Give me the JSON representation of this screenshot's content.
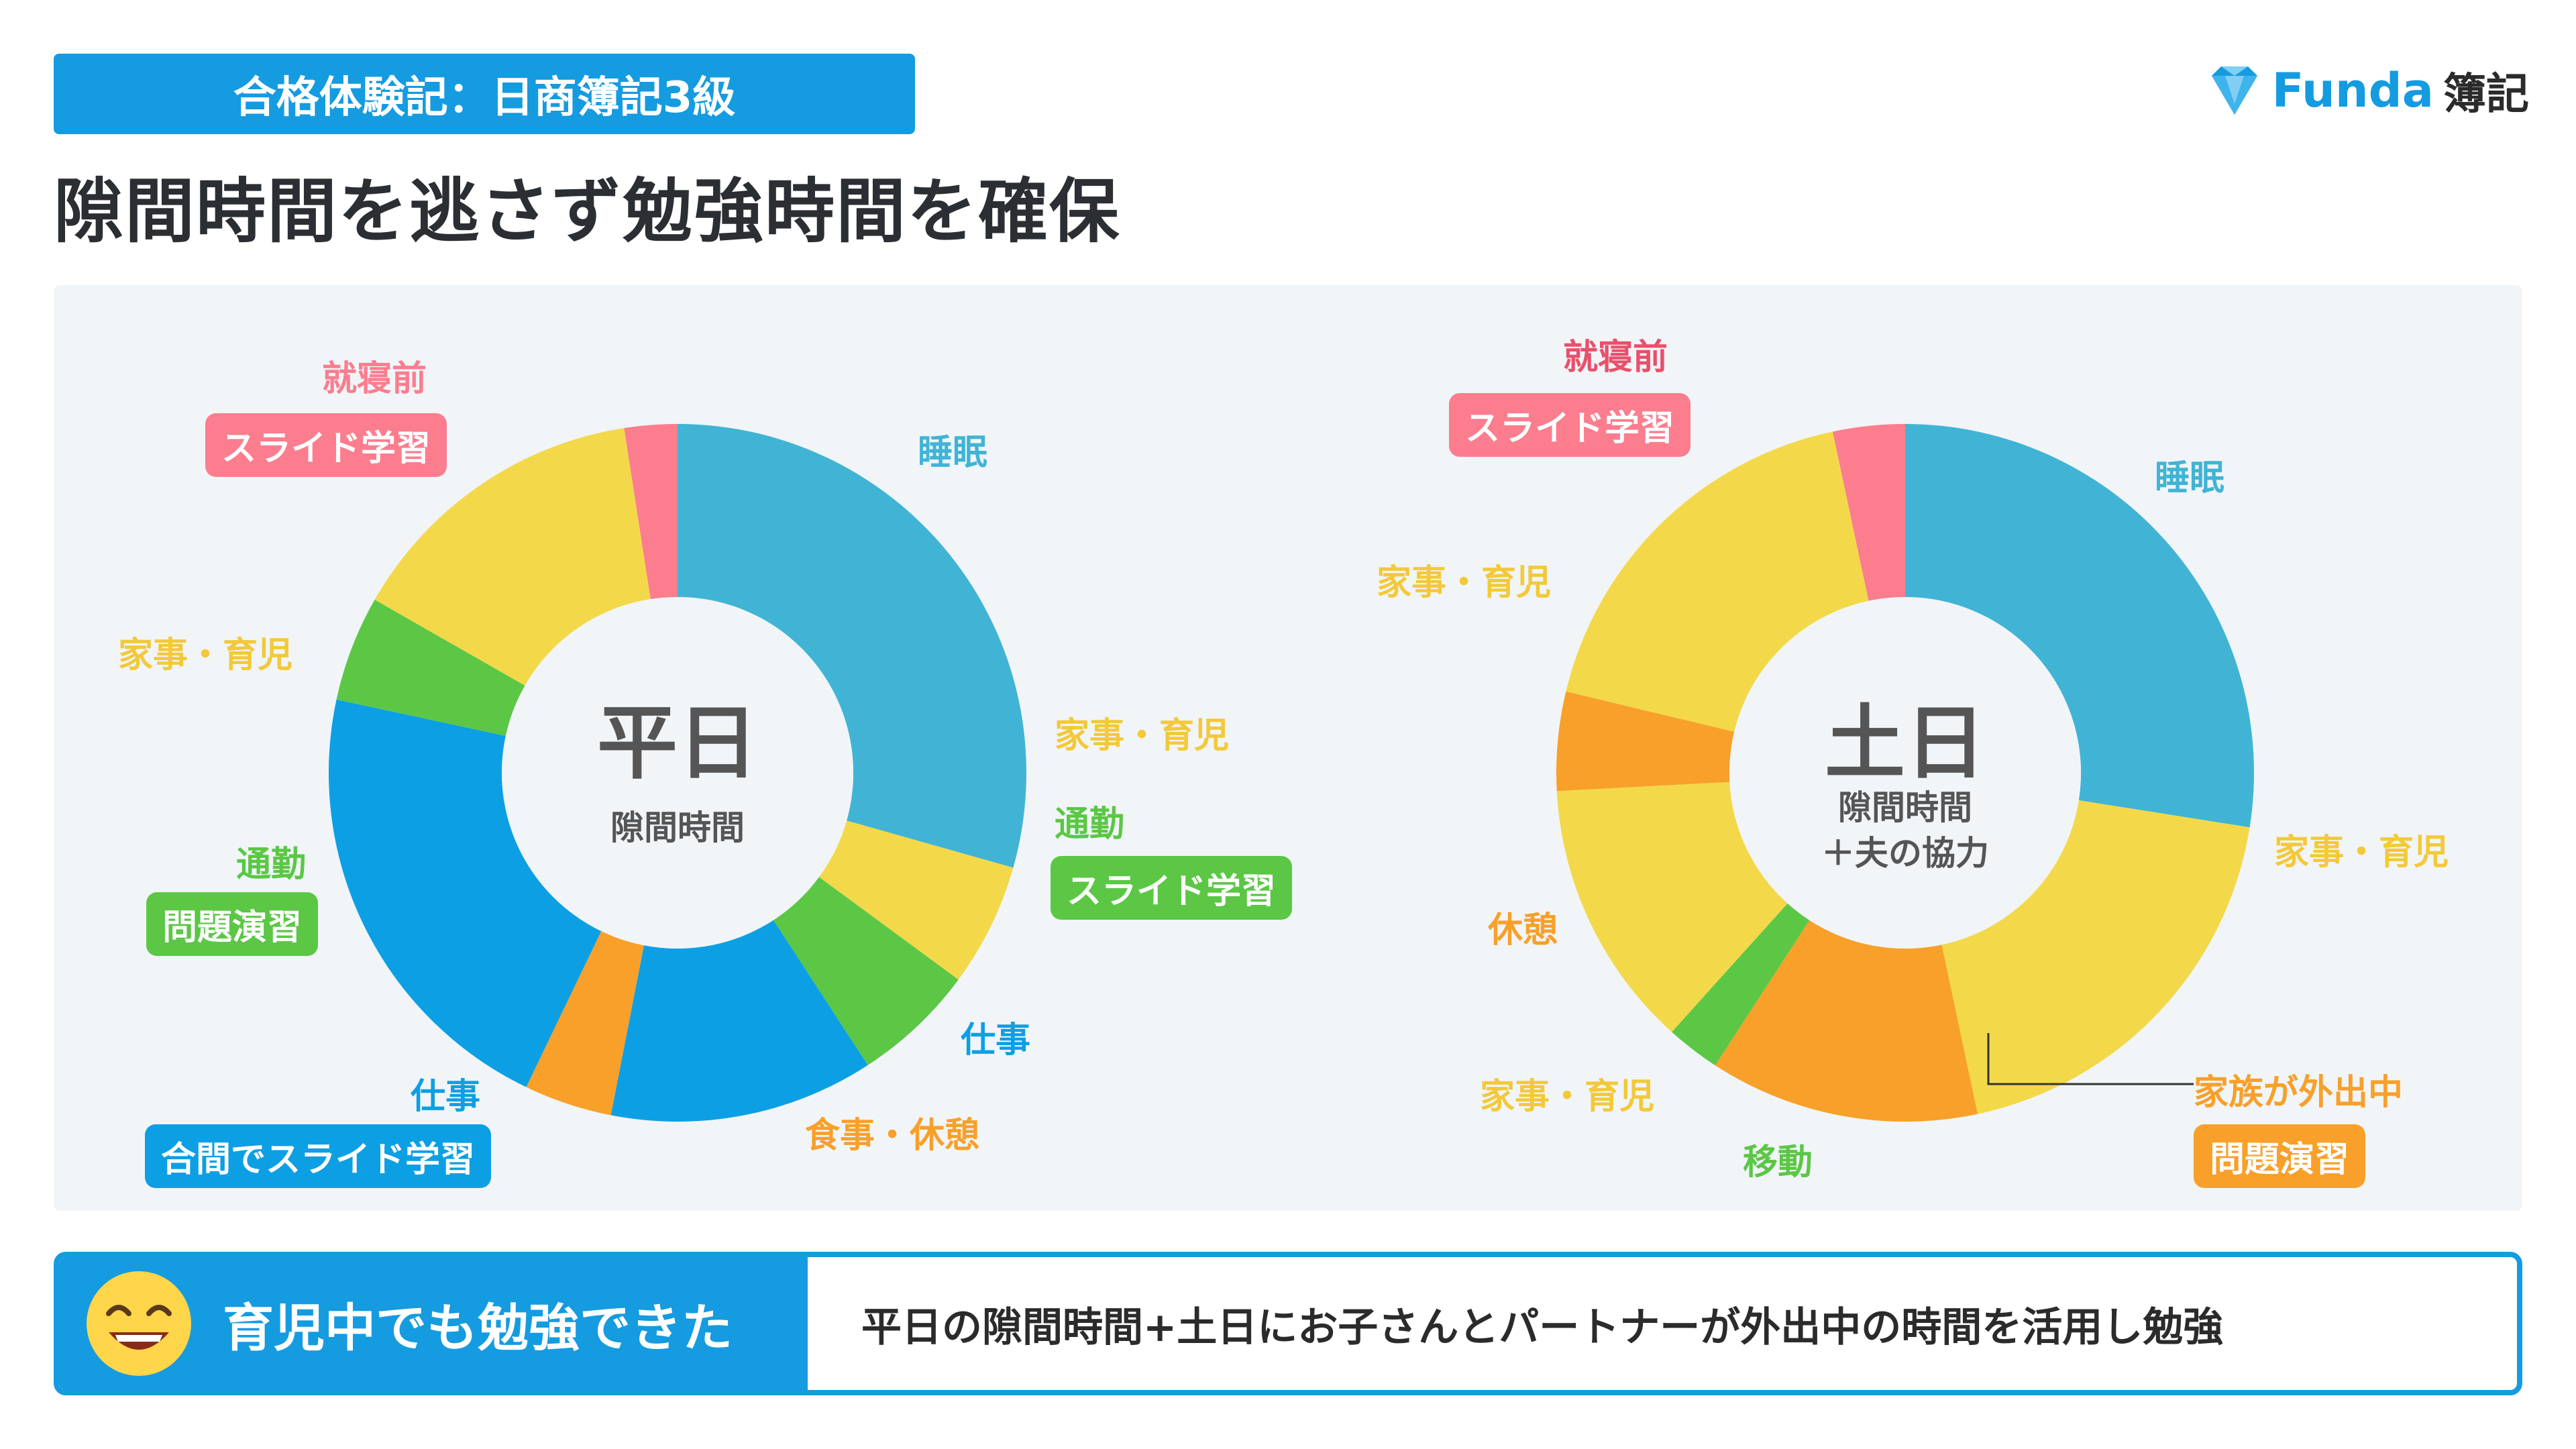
{
  "header": {
    "badge": "合格体験記：日商簿記3級",
    "title": "隙間時間を逃さず勉強時間を確保",
    "logo_word": "Funda",
    "logo_sub": "簿記"
  },
  "colors": {
    "brand": "#159be0",
    "sleep": "#41b4d5",
    "chores": "#f3d94a",
    "commute": "#5bc745",
    "work": "#0d9fe4",
    "meal": "#f8a02a",
    "bedtime": "#fb7d8e"
  },
  "chart_data": [
    {
      "type": "pie",
      "center_title": "平日",
      "center_subtitle": "隙間時間",
      "labels": [
        "睡眠",
        "家事・育児",
        "通勤",
        "仕事",
        "食事・休憩",
        "仕事",
        "通勤",
        "家事・育児",
        "就寝前"
      ],
      "values": [
        7.2,
        1.4,
        1.4,
        3.0,
        1.0,
        5.2,
        1.2,
        3.5,
        0.6
      ],
      "colors": [
        "#41b4d5",
        "#f3d94a",
        "#5bc745",
        "#0d9fe4",
        "#f8a02a",
        "#0d9fe4",
        "#5bc745",
        "#f3d94a",
        "#fb7d8e"
      ],
      "study_tags": [
        {
          "label": "就寝前",
          "study": "スライド学習"
        },
        {
          "label": "通勤",
          "study": "スライド学習"
        },
        {
          "label": "通勤",
          "study": "問題演習"
        },
        {
          "label": "仕事",
          "study": "合間でスライド学習"
        }
      ]
    },
    {
      "type": "pie",
      "center_title": "土日",
      "center_subtitle": "隙間時間\n＋夫の協力",
      "labels": [
        "睡眠",
        "家事・育児",
        "家族が外出中",
        "移動",
        "家事・育児",
        "休憩",
        "家事・育児",
        "就寝前"
      ],
      "values": [
        6.6,
        4.6,
        3.0,
        0.6,
        3.0,
        1.1,
        4.3,
        0.8
      ],
      "colors": [
        "#41b4d5",
        "#f3d94a",
        "#f8a02a",
        "#5bc745",
        "#f3d94a",
        "#f8a02a",
        "#f3d94a",
        "#fb7d8e"
      ],
      "study_tags": [
        {
          "label": "就寝前",
          "study": "スライド学習"
        },
        {
          "label": "家族が外出中",
          "study": "問題演習"
        }
      ]
    }
  ],
  "labels": {
    "weekday": {
      "bedtime": "就寝前",
      "bedtime_study": "スライド学習",
      "sleep": "睡眠",
      "chores_right": "家事・育児",
      "commute_right": "通勤",
      "commute_right_study": "スライド学習",
      "work_right": "仕事",
      "meal": "食事・休憩",
      "work_left": "仕事",
      "work_left_study": "合間でスライド学習",
      "commute_left": "通勤",
      "commute_left_study": "問題演習",
      "chores_left": "家事・育児"
    },
    "weekend": {
      "bedtime": "就寝前",
      "bedtime_study": "スライド学習",
      "sleep": "睡眠",
      "chores_top": "家事・育児",
      "chores_right": "家事・育児",
      "rest": "休憩",
      "chores_bottom": "家事・育児",
      "move": "移動",
      "family_out": "家族が外出中",
      "family_out_study": "問題演習"
    }
  },
  "bottom": {
    "headline": "育児中でも勉強できた",
    "detail": "平日の隙間時間+土日にお子さんとパートナーが外出中の時間を活用し勉強"
  }
}
